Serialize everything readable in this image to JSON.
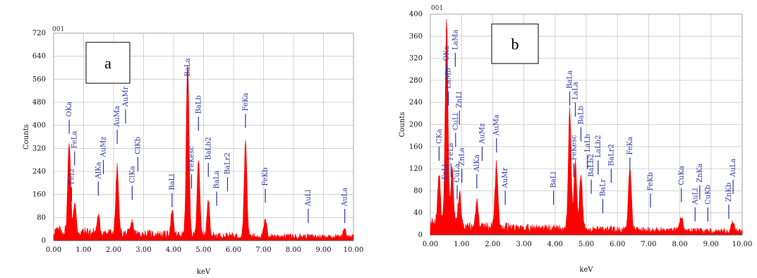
{
  "chart_data": [
    {
      "panel_label": "a",
      "type": "area",
      "code": "001",
      "xlabel": "keV",
      "ylabel": "Counts",
      "xlim": [
        0,
        10
      ],
      "ylim": [
        0,
        720
      ],
      "x_ticks": [
        "0.00",
        "1.00",
        "2.00",
        "3.00",
        "4.00",
        "5.00",
        "6.00",
        "7.00",
        "8.00",
        "9.00",
        "10.00"
      ],
      "y_ticks": [
        "0",
        "80",
        "160",
        "240",
        "320",
        "400",
        "480",
        "560",
        "640",
        "720"
      ],
      "grid": true,
      "peaks": [
        {
          "x": 0.52,
          "y": 320
        },
        {
          "x": 0.7,
          "y": 100
        },
        {
          "x": 1.49,
          "y": 55
        },
        {
          "x": 2.12,
          "y": 230
        },
        {
          "x": 2.62,
          "y": 40
        },
        {
          "x": 3.95,
          "y": 80
        },
        {
          "x": 4.47,
          "y": 600
        },
        {
          "x": 4.83,
          "y": 265
        },
        {
          "x": 5.16,
          "y": 120
        },
        {
          "x": 6.4,
          "y": 330
        },
        {
          "x": 7.06,
          "y": 55
        },
        {
          "x": 9.7,
          "y": 30
        }
      ],
      "annotations": [
        {
          "label": "OKa",
          "x": 0.52,
          "y": 420
        },
        {
          "label": "FeLl",
          "x": 0.6,
          "y": 185
        },
        {
          "label": "FeLa",
          "x": 0.7,
          "y": 310
        },
        {
          "label": "AlKa",
          "x": 1.49,
          "y": 205
        },
        {
          "label": "AuMz",
          "x": 1.66,
          "y": 280
        },
        {
          "label": "AuMa",
          "x": 2.12,
          "y": 385
        },
        {
          "label": "AuMr",
          "x": 2.4,
          "y": 455
        },
        {
          "label": "ClKa",
          "x": 2.62,
          "y": 190
        },
        {
          "label": "ClKb",
          "x": 2.81,
          "y": 290
        },
        {
          "label": "BaLl",
          "x": 3.95,
          "y": 165
        },
        {
          "label": "BaLa",
          "x": 4.47,
          "y": 560
        },
        {
          "label": "FeKesc",
          "x": 4.6,
          "y": 230
        },
        {
          "label": "BaLb",
          "x": 4.83,
          "y": 430
        },
        {
          "label": "BaLb2",
          "x": 5.16,
          "y": 270
        },
        {
          "label": "BaLa",
          "x": 5.44,
          "y": 170
        },
        {
          "label": "BaLr2",
          "x": 5.8,
          "y": 220
        },
        {
          "label": "FeKa",
          "x": 6.4,
          "y": 440
        },
        {
          "label": "FeKb",
          "x": 7.06,
          "y": 180
        },
        {
          "label": "AuLl",
          "x": 8.49,
          "y": 110
        },
        {
          "label": "AuLa",
          "x": 9.71,
          "y": 110
        }
      ],
      "colors": {
        "spectrum": "#ff0000",
        "labels": "#2b36a8",
        "grid": "#c8c8c8"
      }
    },
    {
      "panel_label": "b",
      "type": "area",
      "code": "001",
      "xlabel": "keV",
      "ylabel": "Counts",
      "xlim": [
        0,
        10
      ],
      "ylim": [
        0,
        400
      ],
      "x_ticks": [
        "0.00",
        "1.00",
        "2.00",
        "3.00",
        "4.00",
        "5.00",
        "6.00",
        "7.00",
        "8.00",
        "9.00",
        "10.00"
      ],
      "y_ticks": [
        "0",
        "40",
        "80",
        "120",
        "160",
        "200",
        "240",
        "280",
        "320",
        "360",
        "400"
      ],
      "grid": true,
      "peaks": [
        {
          "x": 0.28,
          "y": 90
        },
        {
          "x": 0.52,
          "y": 370
        },
        {
          "x": 0.7,
          "y": 100
        },
        {
          "x": 0.93,
          "y": 60
        },
        {
          "x": 1.49,
          "y": 45
        },
        {
          "x": 2.12,
          "y": 115
        },
        {
          "x": 4.47,
          "y": 215
        },
        {
          "x": 4.65,
          "y": 120
        },
        {
          "x": 4.83,
          "y": 100
        },
        {
          "x": 6.4,
          "y": 115
        },
        {
          "x": 8.05,
          "y": 25
        },
        {
          "x": 9.7,
          "y": 15
        }
      ],
      "annotations": [
        {
          "label": "CKa",
          "x": 0.28,
          "y": 160
        },
        {
          "label": "FeLl",
          "x": 0.48,
          "y": 95
        },
        {
          "label": "OKa",
          "x": 0.52,
          "y": 310
        },
        {
          "label": "LaMb",
          "x": 0.58,
          "y": 260
        },
        {
          "label": "LaMa",
          "x": 0.8,
          "y": 330
        },
        {
          "label": "FeLa",
          "x": 0.66,
          "y": 130
        },
        {
          "label": "CuLa",
          "x": 0.86,
          "y": 90
        },
        {
          "label": "CuLl",
          "x": 0.81,
          "y": 185
        },
        {
          "label": "ZnLl",
          "x": 0.93,
          "y": 225
        },
        {
          "label": "ZnLa",
          "x": 1.01,
          "y": 120
        },
        {
          "label": "AlKa",
          "x": 1.49,
          "y": 110
        },
        {
          "label": "AuMz",
          "x": 1.66,
          "y": 160
        },
        {
          "label": "AuMa",
          "x": 2.12,
          "y": 175
        },
        {
          "label": "AuMr",
          "x": 2.4,
          "y": 80
        },
        {
          "label": "BaLl",
          "x": 3.95,
          "y": 80
        },
        {
          "label": "BaLa",
          "x": 4.47,
          "y": 260
        },
        {
          "label": "LaLa",
          "x": 4.65,
          "y": 240
        },
        {
          "label": "FeKesc",
          "x": 4.6,
          "y": 130
        },
        {
          "label": "BaLb",
          "x": 4.83,
          "y": 195
        },
        {
          "label": "LaLb",
          "x": 5.04,
          "y": 145
        },
        {
          "label": "BaLb2",
          "x": 5.16,
          "y": 100
        },
        {
          "label": "LaLb2",
          "x": 5.38,
          "y": 135
        },
        {
          "label": "BaLr",
          "x": 5.53,
          "y": 65
        },
        {
          "label": "BaLr2",
          "x": 5.8,
          "y": 120
        },
        {
          "label": "FeKa",
          "x": 6.4,
          "y": 140
        },
        {
          "label": "FeKb",
          "x": 7.06,
          "y": 75
        },
        {
          "label": "CuKa",
          "x": 8.05,
          "y": 85
        },
        {
          "label": "AuLl",
          "x": 8.49,
          "y": 50
        },
        {
          "label": "CuKb",
          "x": 8.9,
          "y": 50
        },
        {
          "label": "ZnKa",
          "x": 8.64,
          "y": 90
        },
        {
          "label": "ZnKb",
          "x": 9.57,
          "y": 55
        },
        {
          "label": "AuLa",
          "x": 9.71,
          "y": 100
        }
      ],
      "colors": {
        "spectrum": "#ff0000",
        "labels": "#2b36a8",
        "grid": "#c8c8c8"
      }
    }
  ]
}
